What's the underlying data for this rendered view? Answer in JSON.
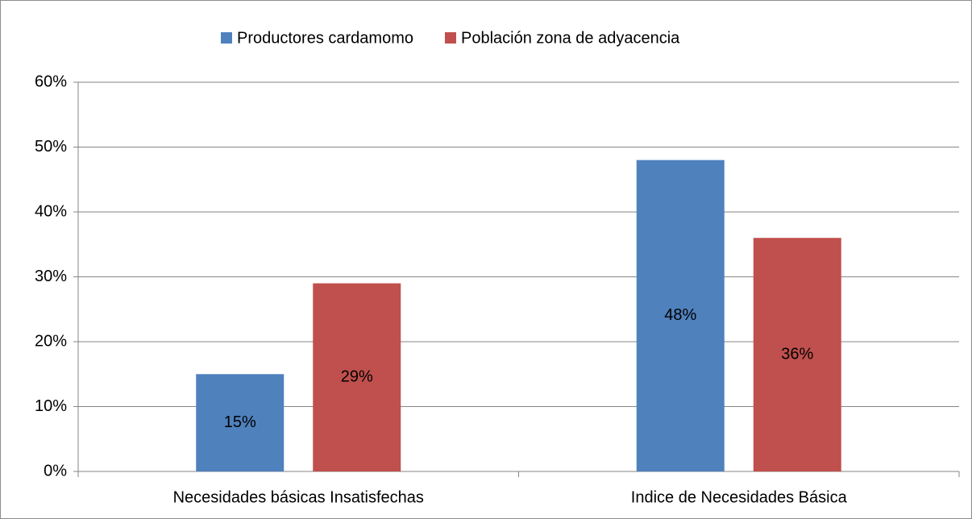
{
  "chart_data": {
    "type": "bar",
    "categories": [
      "Necesidades básicas Insatisfechas",
      "Indice de Necesidades Básica"
    ],
    "series": [
      {
        "name": "Productores cardamomo",
        "color": "#4f81bd",
        "values": [
          15,
          48
        ],
        "value_labels": [
          "15%",
          "48%"
        ]
      },
      {
        "name": "Población zona de adyacencia",
        "color": "#c0504d",
        "values": [
          29,
          36
        ],
        "value_labels": [
          "29%",
          "36%"
        ]
      }
    ],
    "ylim": [
      0,
      60
    ],
    "yticks": [
      {
        "value": 0,
        "label": "0%"
      },
      {
        "value": 10,
        "label": "10%"
      },
      {
        "value": 20,
        "label": "20%"
      },
      {
        "value": 30,
        "label": "30%"
      },
      {
        "value": 40,
        "label": "40%"
      },
      {
        "value": 50,
        "label": "50%"
      },
      {
        "value": 60,
        "label": "60%"
      }
    ],
    "grid": true,
    "legend": "top"
  }
}
